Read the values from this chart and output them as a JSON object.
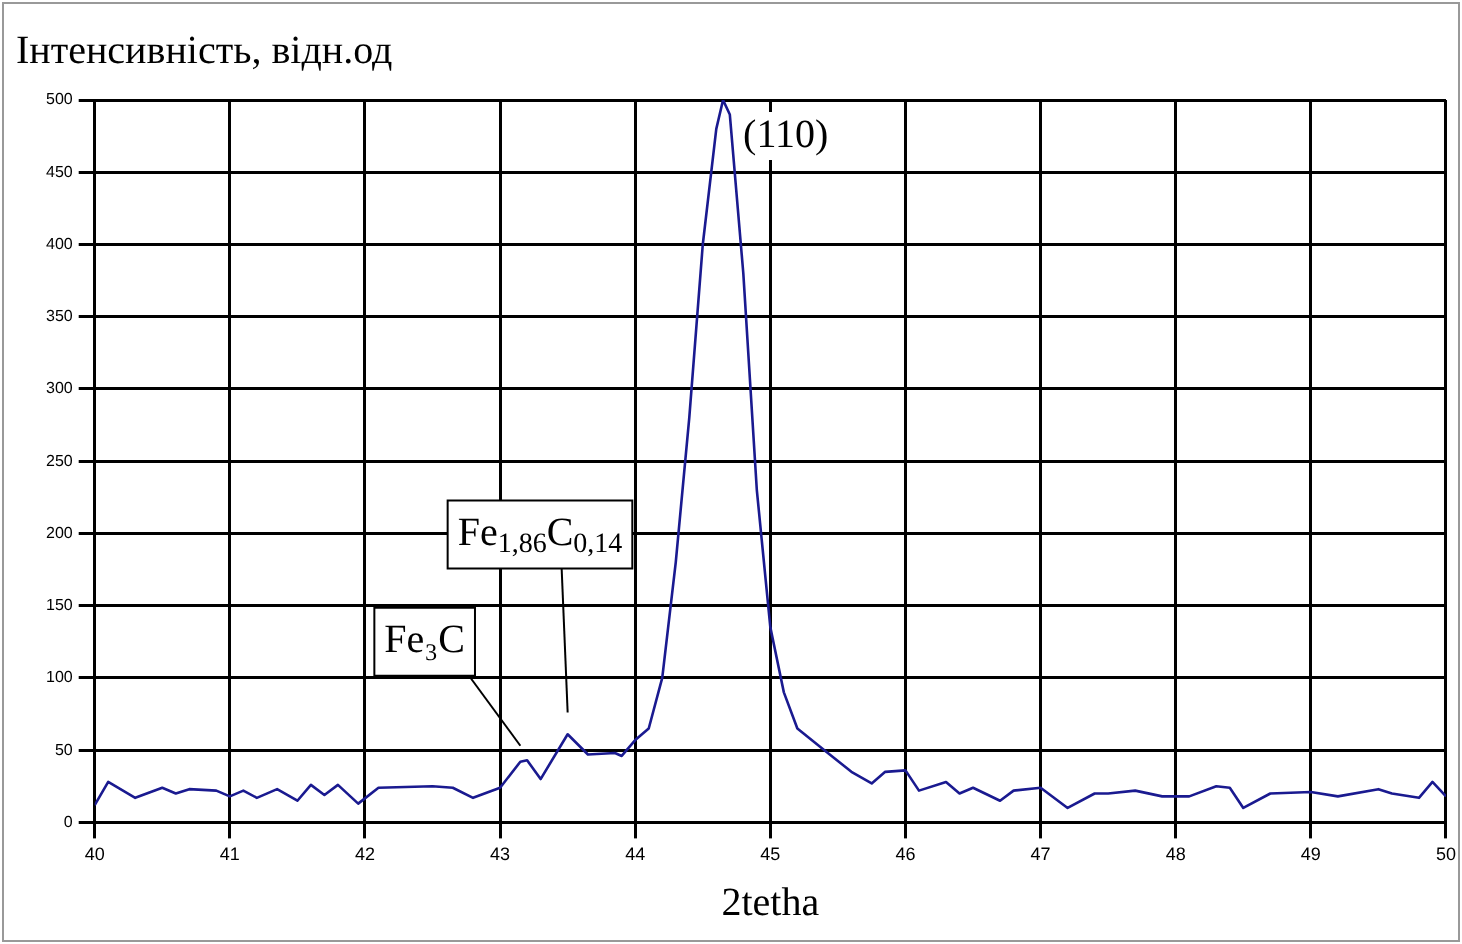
{
  "chart_data": {
    "type": "line",
    "xlabel": "2tetha",
    "ylabel": "Інтенсивність, відн.од",
    "x": [
      40.0,
      40.1,
      40.3,
      40.5,
      40.6,
      40.7,
      40.9,
      41.0,
      41.1,
      41.2,
      41.35,
      41.5,
      41.6,
      41.7,
      41.8,
      41.95,
      42.1,
      42.5,
      42.65,
      42.8,
      43.0,
      43.15,
      43.2,
      43.3,
      43.5,
      43.65,
      43.85,
      43.9,
      44.0,
      44.1,
      44.2,
      44.3,
      44.4,
      44.5,
      44.6,
      44.65,
      44.7,
      44.8,
      44.9,
      45.0,
      45.1,
      45.2,
      45.4,
      45.6,
      45.75,
      45.85,
      46.0,
      46.1,
      46.3,
      46.4,
      46.5,
      46.7,
      46.8,
      47.0,
      47.2,
      47.4,
      47.5,
      47.7,
      47.9,
      48.1,
      48.3,
      48.4,
      48.5,
      48.7,
      49.0,
      49.2,
      49.5,
      49.6,
      49.8,
      49.9,
      50.0
    ],
    "series": [
      {
        "color": "#1a1a90",
        "values": [
          12,
          28,
          17,
          24,
          20,
          23,
          22,
          18,
          22,
          17,
          23,
          15,
          26,
          19,
          26,
          13,
          24,
          25,
          24,
          17,
          24,
          42,
          43,
          30,
          61,
          47,
          48,
          46,
          57,
          65,
          100,
          180,
          280,
          400,
          480,
          500,
          490,
          380,
          230,
          135,
          90,
          65,
          50,
          35,
          27,
          35,
          36,
          22,
          28,
          20,
          24,
          15,
          22,
          24,
          10,
          20,
          20,
          22,
          18,
          18,
          25,
          24,
          10,
          20,
          21,
          18,
          23,
          20,
          17,
          28,
          18
        ]
      }
    ],
    "xlim": [
      40,
      50
    ],
    "xticks": [
      40,
      41,
      42,
      43,
      44,
      45,
      46,
      47,
      48,
      49,
      50
    ],
    "ylim": [
      0,
      500
    ],
    "yticks": [
      0,
      50,
      100,
      150,
      200,
      250,
      300,
      350,
      400,
      450,
      500
    ],
    "grid": true,
    "marker": "none",
    "line_style": "solid",
    "annotations": [
      {
        "text": "(110)",
        "x": 44.68,
        "y": 500
      },
      {
        "text": "Fe$_{1,86}$C$_{0,14}$",
        "x": 43.5,
        "y": 65
      },
      {
        "text": "Fe₃C",
        "x": 43.15,
        "y": 42
      }
    ]
  }
}
